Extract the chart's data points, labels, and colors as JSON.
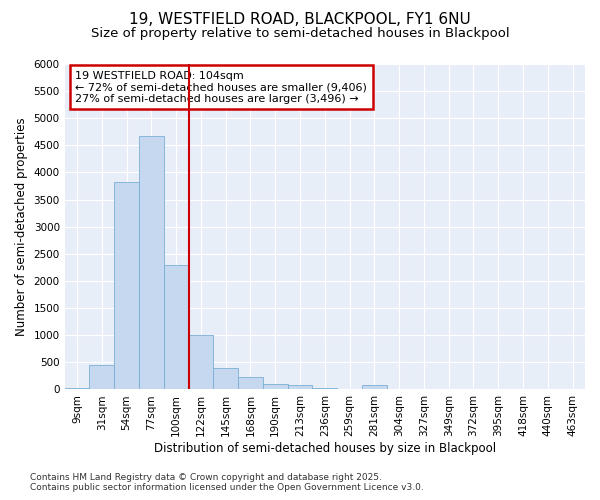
{
  "title_line1": "19, WESTFIELD ROAD, BLACKPOOL, FY1 6NU",
  "title_line2": "Size of property relative to semi-detached houses in Blackpool",
  "xlabel": "Distribution of semi-detached houses by size in Blackpool",
  "ylabel": "Number of semi-detached properties",
  "categories": [
    "9sqm",
    "31sqm",
    "54sqm",
    "77sqm",
    "100sqm",
    "122sqm",
    "145sqm",
    "168sqm",
    "190sqm",
    "213sqm",
    "236sqm",
    "259sqm",
    "281sqm",
    "304sqm",
    "327sqm",
    "349sqm",
    "372sqm",
    "395sqm",
    "418sqm",
    "440sqm",
    "463sqm"
  ],
  "values": [
    30,
    450,
    3820,
    4680,
    2300,
    1000,
    400,
    235,
    100,
    75,
    30,
    0,
    75,
    0,
    0,
    0,
    0,
    0,
    0,
    0,
    0
  ],
  "bar_color": "#c5d8ef",
  "bar_edge_color": "#7aafd4",
  "vline_x_index": 4,
  "vline_color": "#cc0000",
  "annotation_title": "19 WESTFIELD ROAD: 104sqm",
  "annotation_line1": "← 72% of semi-detached houses are smaller (9,406)",
  "annotation_line2": "27% of semi-detached houses are larger (3,496) →",
  "annotation_box_color": "#cc0000",
  "ylim": [
    0,
    6000
  ],
  "yticks": [
    0,
    500,
    1000,
    1500,
    2000,
    2500,
    3000,
    3500,
    4000,
    4500,
    5000,
    5500,
    6000
  ],
  "fig_bg_color": "#ffffff",
  "plot_bg_color": "#e8eef8",
  "grid_color": "#ffffff",
  "footer_line1": "Contains HM Land Registry data © Crown copyright and database right 2025.",
  "footer_line2": "Contains public sector information licensed under the Open Government Licence v3.0.",
  "title_fontsize": 11,
  "subtitle_fontsize": 9.5,
  "axis_label_fontsize": 8.5,
  "tick_fontsize": 7.5,
  "annotation_fontsize": 8,
  "footer_fontsize": 6.5
}
